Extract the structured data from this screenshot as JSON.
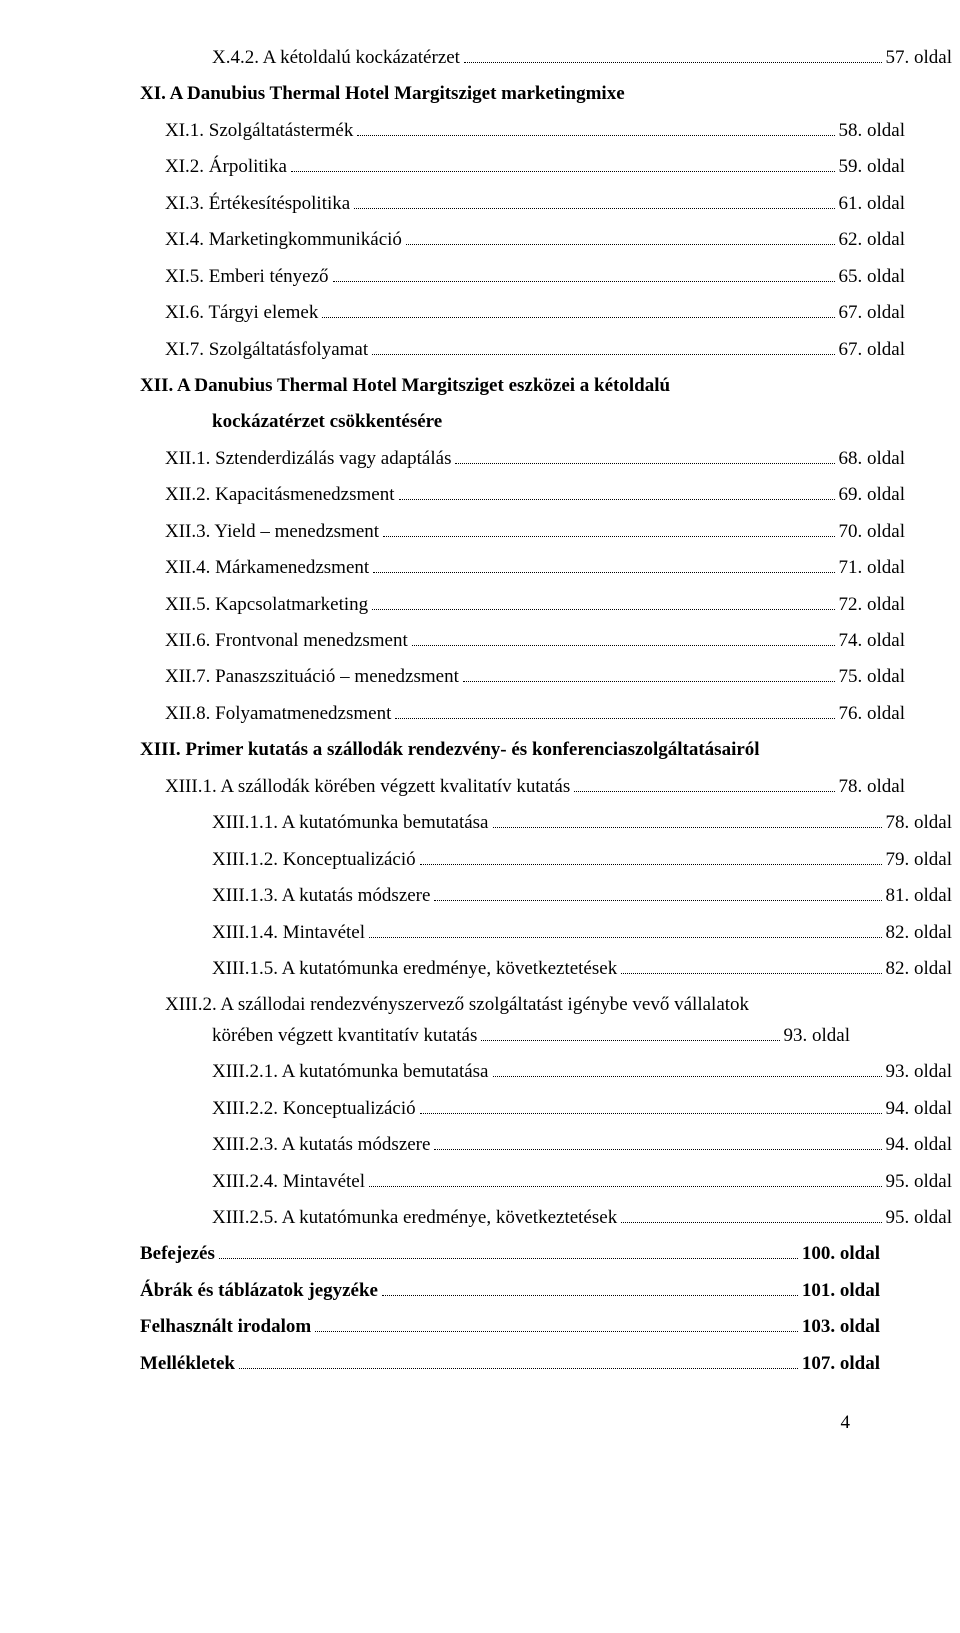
{
  "entries": [
    {
      "label": "X.4.2. A kétoldalú kockázatérzet",
      "page": "57. oldal",
      "indent": 2,
      "bold": false
    },
    {
      "label": "XI. A Danubius Thermal Hotel Margitsziget marketingmixe",
      "page": null,
      "indent": 0,
      "bold": true,
      "headingOnly": true
    },
    {
      "label": "XI.1. Szolgáltatástermék",
      "page": "58. oldal",
      "indent": 1,
      "bold": false
    },
    {
      "label": "XI.2. Árpolitika",
      "page": "59. oldal",
      "indent": 1,
      "bold": false
    },
    {
      "label": "XI.3. Értékesítéspolitika",
      "page": "61. oldal",
      "indent": 1,
      "bold": false
    },
    {
      "label": "XI.4. Marketingkommunikáció",
      "page": "62. oldal",
      "indent": 1,
      "bold": false
    },
    {
      "label": "XI.5. Emberi tényező",
      "page": "65. oldal",
      "indent": 1,
      "bold": false
    },
    {
      "label": "XI.6. Tárgyi elemek",
      "page": "67. oldal",
      "indent": 1,
      "bold": false
    },
    {
      "label": "XI.7. Szolgáltatásfolyamat",
      "page": "67. oldal",
      "indent": 1,
      "bold": false
    },
    {
      "label": "XII. A Danubius Thermal Hotel Margitsziget eszközei a kétoldalú",
      "page": null,
      "indent": 0,
      "bold": true,
      "xiiPart": 1
    },
    {
      "label": "kockázatérzet csökkentésére",
      "page": null,
      "indent": 0,
      "bold": true,
      "xiiPart": 2
    },
    {
      "label": "XII.1. Sztenderdizálás vagy adaptálás",
      "page": "68. oldal",
      "indent": 1,
      "bold": false
    },
    {
      "label": "XII.2. Kapacitásmenedzsment",
      "page": "69. oldal",
      "indent": 1,
      "bold": false
    },
    {
      "label": "XII.3. Yield – menedzsment",
      "page": "70. oldal",
      "indent": 1,
      "bold": false
    },
    {
      "label": "XII.4. Márkamenedzsment",
      "page": "71. oldal",
      "indent": 1,
      "bold": false
    },
    {
      "label": "XII.5. Kapcsolatmarketing",
      "page": "72. oldal",
      "indent": 1,
      "bold": false
    },
    {
      "label": "XII.6. Frontvonal menedzsment",
      "page": "74. oldal",
      "indent": 1,
      "bold": false
    },
    {
      "label": "XII.7. Panaszszituáció – menedzsment",
      "page": "75. oldal",
      "indent": 1,
      "bold": false
    },
    {
      "label": "XII.8. Folyamatmenedzsment",
      "page": "76. oldal",
      "indent": 1,
      "bold": false
    },
    {
      "label": "XIII. Primer kutatás a szállodák rendezvény- és konferenciaszolgáltatásairól",
      "page": null,
      "indent": 0,
      "bold": true,
      "headingOnly": true
    },
    {
      "label": "XIII.1. A szállodák körében végzett kvalitatív kutatás",
      "page": "78. oldal",
      "indent": 1,
      "bold": false
    },
    {
      "label": "XIII.1.1. A kutatómunka bemutatása",
      "page": "78. oldal",
      "indent": 2,
      "bold": false
    },
    {
      "label": "XIII.1.2. Konceptualizáció",
      "page": "79. oldal",
      "indent": 2,
      "bold": false
    },
    {
      "label": "XIII.1.3. A kutatás módszere",
      "page": "81. oldal",
      "indent": 2,
      "bold": false
    },
    {
      "label": "XIII.1.4. Mintavétel",
      "page": "82. oldal",
      "indent": 2,
      "bold": false
    },
    {
      "label": "XIII.1.5. A kutatómunka eredménye, következtetések",
      "page": "82. oldal",
      "indent": 2,
      "bold": false
    },
    {
      "label": "XIII.2. A szállodai rendezvényszervező szolgáltatást igénybe vevő vállalatok",
      "page": null,
      "indent": 1,
      "bold": false,
      "xiii2Part": 1
    },
    {
      "label": "körében végzett kvantitatív kutatás",
      "page": "93. oldal",
      "indent": 1,
      "bold": false,
      "xiii2Part": 2
    },
    {
      "label": "XIII.2.1. A kutatómunka bemutatása",
      "page": "93. oldal",
      "indent": 2,
      "bold": false
    },
    {
      "label": "XIII.2.2. Konceptualizáció",
      "page": "94. oldal",
      "indent": 2,
      "bold": false
    },
    {
      "label": "XIII.2.3. A kutatás módszere",
      "page": "94. oldal",
      "indent": 2,
      "bold": false
    },
    {
      "label": "XIII.2.4. Mintavétel",
      "page": "95. oldal",
      "indent": 2,
      "bold": false
    },
    {
      "label": "XIII.2.5. A kutatómunka eredménye, következtetések",
      "page": "95. oldal",
      "indent": 2,
      "bold": false
    },
    {
      "label": "Befejezés",
      "page": "100. oldal",
      "indent": 0,
      "bold": true
    },
    {
      "label": "Ábrák és táblázatok jegyzéke",
      "page": "101. oldal",
      "indent": 0,
      "bold": true
    },
    {
      "label": "Felhasznált irodalom",
      "page": "103. oldal",
      "indent": 0,
      "bold": true
    },
    {
      "label": "Mellékletek",
      "page": "107. oldal",
      "indent": 0,
      "bold": true
    }
  ],
  "pageNumber": "4",
  "colors": {
    "text": "#000000",
    "background": "#ffffff"
  },
  "font": {
    "family": "Times New Roman",
    "size_pt": 14
  }
}
